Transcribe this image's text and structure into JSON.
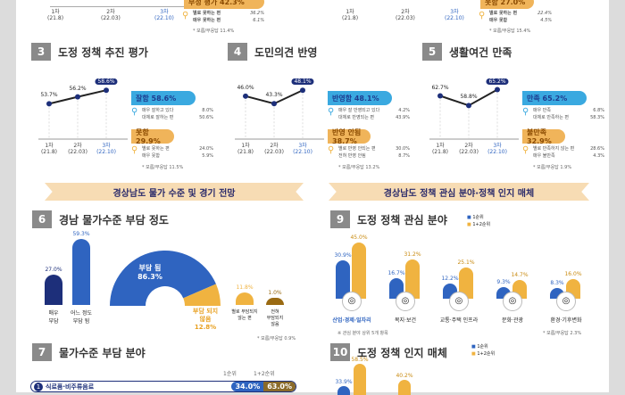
{
  "top_strip": {
    "left": {
      "waves": [
        "1차\n(21.8)",
        "2차\n(22.03)",
        "3차\n(22.10)"
      ],
      "badge": "부정 평가 42.3%",
      "rows": [
        [
          "별로 못하는 편",
          "36.2%"
        ],
        [
          "매우 못하는 편",
          "6.1%"
        ]
      ],
      "foot": "* 모름/무응답 11.4%"
    },
    "right": {
      "waves": [
        "1차\n(21.8)",
        "2차\n(22.03)",
        "3차\n(22.10)"
      ],
      "badge": "못함 27.0%",
      "rows": [
        [
          "별로 못하는 편",
          "22.4%"
        ],
        [
          "매우 못함",
          "4.5%"
        ]
      ],
      "foot": "* 모름/무응답 15.4%"
    }
  },
  "sections": [
    {
      "num": "3",
      "title": "도정 정책 추진 평가",
      "points": [
        53.7,
        56.2,
        58.6
      ],
      "labels": [
        "53.7%",
        "56.2%",
        "58.6%"
      ],
      "waves": [
        "1차\n(21.8)",
        "2차\n(22.03)",
        "3차\n(22.10)"
      ],
      "pos": {
        "label": "잘함 58.6%",
        "rows": [
          [
            "매우 잘하고 있다",
            "8.0%"
          ],
          [
            "대체로 잘하는 편",
            "50.6%"
          ]
        ]
      },
      "neg": {
        "label": "못함 29.9%",
        "rows": [
          [
            "별로 못하는 편",
            "24.0%"
          ],
          [
            "매우 못함",
            "5.9%"
          ]
        ]
      },
      "foot": "* 모름/무응답 11.5%"
    },
    {
      "num": "4",
      "title": "도민의견 반영",
      "points": [
        46.0,
        43.3,
        48.1
      ],
      "labels": [
        "46.0%",
        "43.3%",
        "48.1%"
      ],
      "waves": [
        "1차\n(21.8)",
        "2차\n(22.03)",
        "3차\n(22.10)"
      ],
      "pos": {
        "label": "반영함 48.1%",
        "rows": [
          [
            "매우 잘 반영되고 있다",
            "4.2%"
          ],
          [
            "대체로 반영되는 편",
            "43.9%"
          ]
        ]
      },
      "neg": {
        "label": "반영 안됨 38.7%",
        "rows": [
          [
            "별로 반영 안되는 편",
            "30.0%"
          ],
          [
            "전혀 반영 안됨",
            "8.7%"
          ]
        ]
      },
      "foot": "* 모름/무응답 13.2%"
    },
    {
      "num": "5",
      "title": "생활여건 만족",
      "points": [
        62.7,
        58.8,
        65.2
      ],
      "labels": [
        "62.7%",
        "58.8%",
        "65.2%"
      ],
      "waves": [
        "1차\n(21.8)",
        "2차\n(22.03)",
        "3차\n(22.10)"
      ],
      "pos": {
        "label": "만족 65.2%",
        "rows": [
          [
            "매우 만족",
            "6.8%"
          ],
          [
            "대체로 만족하는 편",
            "58.3%"
          ]
        ]
      },
      "neg": {
        "label": "불만족 32.9%",
        "rows": [
          [
            "별로 만족하지 않는 편",
            "28.6%"
          ],
          [
            "매우 불만족",
            "4.3%"
          ]
        ]
      },
      "foot": "* 모름/무응답 1.9%"
    }
  ],
  "banners": {
    "left": "경상남도 물가 수준 및 경기 전망",
    "right": "경상남도 정책 관심 분야·정책 인지 매체"
  },
  "sec6": {
    "num": "6",
    "title": "경남 물가수준 부담 정도",
    "bars": [
      {
        "label": "매우\n부담",
        "value": 27.0,
        "text": "27.0%",
        "color": "#1d2f7a"
      },
      {
        "label": "어느 정도\n부담 됨",
        "value": 59.3,
        "text": "59.3%",
        "color": "#2f64c0"
      }
    ],
    "donut": {
      "pos": "부담 됨\n86.3%",
      "neg": "부담 되지\n않음\n12.8%",
      "pos_value": 86.3,
      "neg_value": 12.8
    },
    "small": [
      {
        "label": "별로 부담되지\n않는 편",
        "value": 11.8,
        "text": "11.8%",
        "color": "#f0b340"
      },
      {
        "label": "전혀\n부담되지\n않음",
        "value": 1.0,
        "text": "1.0%",
        "color": "#9a6a12"
      }
    ],
    "foot": "* 모름/무응답 0.9%"
  },
  "sec9": {
    "num": "9",
    "title": "도정 정책 관심 분야",
    "legend": [
      "1순위",
      "1+2순위"
    ],
    "cats": [
      {
        "label": "산업·경제·일자리",
        "v1": 30.9,
        "v2": 45.0,
        "t1": "30.9%",
        "t2": "45.0%"
      },
      {
        "label": "복지·보건",
        "v1": 16.7,
        "v2": 31.2,
        "t1": "16.7%",
        "t2": "31.2%"
      },
      {
        "label": "교통·주택 인프라",
        "v1": 12.2,
        "v2": 25.1,
        "t1": "12.2%",
        "t2": "25.1%"
      },
      {
        "label": "문화·관광",
        "v1": 9.3,
        "v2": 14.7,
        "t1": "9.3%",
        "t2": "14.7%"
      },
      {
        "label": "환경·기후변화",
        "v1": 8.3,
        "v2": 16.0,
        "t1": "8.3%",
        "t2": "16.0%"
      }
    ],
    "foot_left": "※ 관심 분야 상위 5개 항목",
    "foot_right": "* 모름/무응답 2.3%"
  },
  "sec7": {
    "num": "7",
    "title": "물가수준 부담 분야",
    "headers": [
      "1순위",
      "1+2순위"
    ],
    "rows": [
      {
        "rank": "1",
        "label": "식료품·비주류음료",
        "v1": "34.0%",
        "v2": "63.0%"
      }
    ]
  },
  "sec10": {
    "num": "10",
    "title": "도정 정책 인지 매체",
    "legend": [
      "1순위",
      "1+2순위"
    ],
    "vals": [
      {
        "t1": "33.9%",
        "t2": "58.5%"
      },
      {
        "t2": "40.2%"
      }
    ]
  },
  "colors": {
    "blue": "#2f64c0",
    "navy": "#1d2f7a",
    "orange": "#f0b340",
    "sky": "#3aa9e0"
  }
}
